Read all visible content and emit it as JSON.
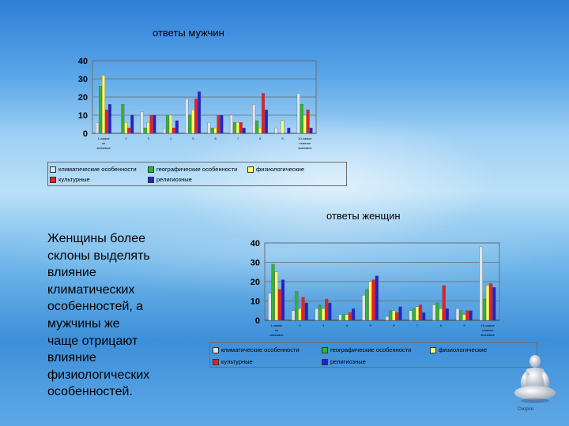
{
  "description_text": "Женщины более склоны выделять влияние климатических особенностей, а мужчины же чаще отрицают влияние физиологических особенностей.",
  "side_lines": [
    "Женщины более",
    "склоны выделять",
    "влияние",
    "климатических",
    "особенностей, а",
    "мужчины же",
    "чаще отрицают",
    "влияние",
    "физиологических",
    "особенностей."
  ],
  "logo_caption": "Скорсе",
  "series_colors": {
    "climate": "#d9e6f2",
    "geography": "#33b233",
    "physiology": "#ffff66",
    "culture": "#e82020",
    "religion": "#2222cc"
  },
  "chart_data": [
    {
      "type": "bar",
      "title": "ответы мужчин",
      "ylim": [
        0,
        40
      ],
      "yticks": [
        0,
        10,
        20,
        30,
        40
      ],
      "categories": [
        "1-самое не значимое",
        "2",
        "3",
        "4",
        "5",
        "6",
        "7",
        "8",
        "9",
        "10-самое главное значимое"
      ],
      "series": [
        {
          "name": "климатические особенности",
          "values": [
            6,
            0,
            12,
            3,
            19,
            6,
            10,
            16,
            3,
            22
          ]
        },
        {
          "name": "географические особенности",
          "values": [
            26,
            16,
            3,
            10,
            10,
            3,
            6,
            7,
            0,
            16
          ]
        },
        {
          "name": "физиологические",
          "values": [
            32,
            6,
            6,
            10,
            13,
            3,
            6,
            3,
            7,
            10
          ]
        },
        {
          "name": "культурные",
          "values": [
            13,
            3,
            10,
            3,
            19,
            10,
            6,
            22,
            0,
            13
          ]
        },
        {
          "name": "религиозные",
          "values": [
            16,
            10,
            10,
            7,
            23,
            10,
            3,
            13,
            3,
            3
          ]
        }
      ],
      "legend": "bottom"
    },
    {
      "type": "bar",
      "title": "ответы женщин",
      "ylim": [
        0,
        40
      ],
      "yticks": [
        0,
        10,
        20,
        30,
        40
      ],
      "categories": [
        "1-самое не значимое",
        "2",
        "3",
        "4",
        "5",
        "6",
        "7",
        "8",
        "9",
        "10-самое главное значимое"
      ],
      "series": [
        {
          "name": "климатические особенности",
          "values": [
            14,
            5,
            6,
            3,
            13,
            2,
            5,
            8,
            6,
            38
          ]
        },
        {
          "name": "географические особенности",
          "values": [
            29,
            15,
            8,
            3,
            16,
            5,
            6,
            9,
            5,
            11
          ]
        },
        {
          "name": "физиологические",
          "values": [
            25,
            6,
            6,
            3,
            20,
            5,
            7,
            6,
            3,
            18
          ]
        },
        {
          "name": "культурные",
          "values": [
            16,
            12,
            11,
            4,
            21,
            4,
            8,
            18,
            5,
            19
          ]
        },
        {
          "name": "религиозные",
          "values": [
            21,
            9,
            9,
            6,
            23,
            7,
            4,
            6,
            5,
            17
          ]
        }
      ],
      "legend": "bottom"
    }
  ]
}
